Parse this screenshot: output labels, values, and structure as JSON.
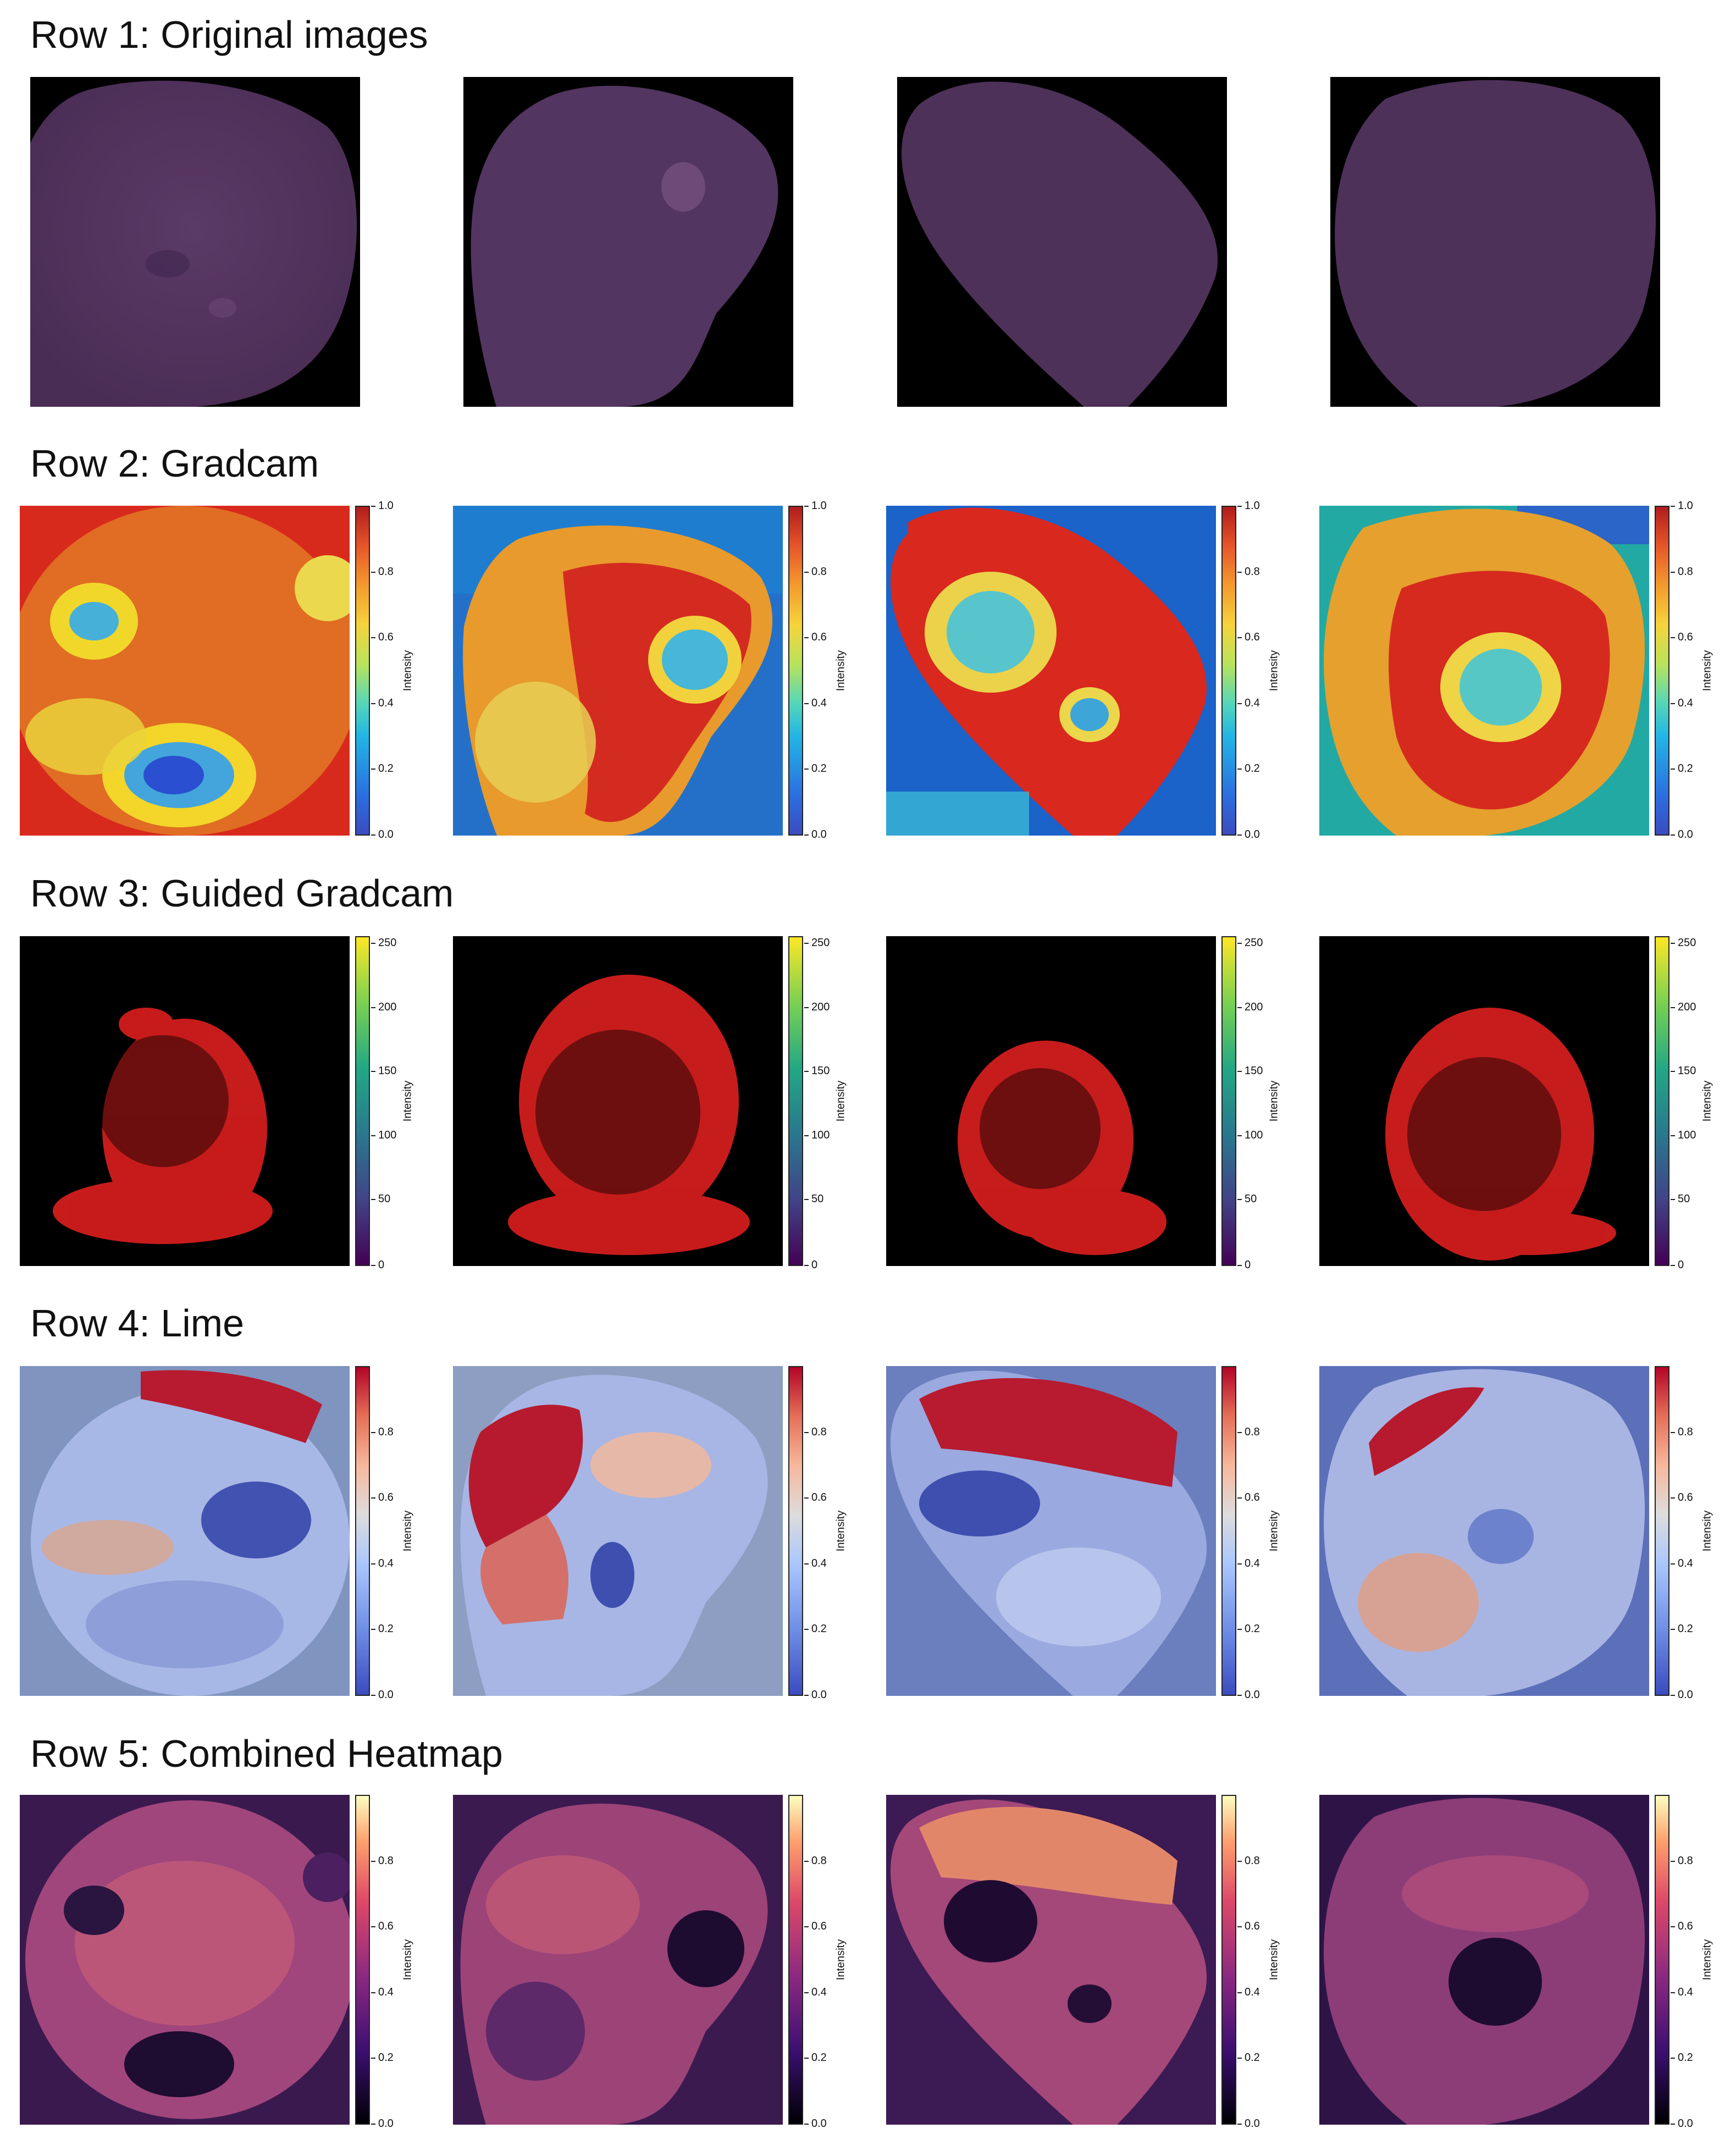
{
  "rows": [
    {
      "title": "Row 1: Original images"
    },
    {
      "title": "Row 2: Gradcam"
    },
    {
      "title": "Row 3: Guided Gradcam"
    },
    {
      "title": "Row 4: Lime"
    },
    {
      "title": "Row 5: Combined Heatmap"
    }
  ],
  "colorbars": {
    "gradcam": {
      "label": "Intensity",
      "ticks": [
        "1.0",
        "0.8",
        "0.6",
        "0.4",
        "0.2",
        "0.0"
      ],
      "colormap": "jet"
    },
    "guided": {
      "label": "Intensity",
      "ticks": [
        "250",
        "200",
        "150",
        "100",
        "50",
        "0"
      ],
      "colormap": "viridis"
    },
    "lime": {
      "label": "Intensity",
      "ticks": [
        "0.8",
        "0.6",
        "0.4",
        "0.2",
        "0.0"
      ],
      "colormap": "coolwarm"
    },
    "combined": {
      "label": "Intensity",
      "ticks": [
        "0.8",
        "0.6",
        "0.4",
        "0.2",
        "0.0"
      ],
      "colormap": "magma"
    }
  },
  "colors": {
    "cell_purple": "#4d3158",
    "guided_red": "#d21d1d",
    "lime_red": "#b5182e",
    "lime_blue": "#7d8bd1"
  }
}
